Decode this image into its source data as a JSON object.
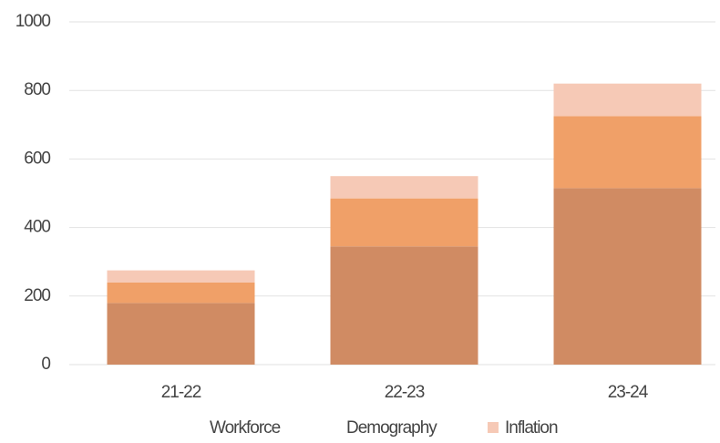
{
  "chart_data": {
    "type": "stacked-bar",
    "categories": [
      "21-22",
      "22-23",
      "23-24"
    ],
    "series": [
      {
        "name": "Workforce",
        "color": "#d08b63",
        "values": [
          180,
          345,
          515
        ]
      },
      {
        "name": "Demography",
        "color": "#f0a068",
        "values": [
          60,
          140,
          210
        ]
      },
      {
        "name": "Inflation",
        "color": "#f6c9b6",
        "values": [
          35,
          65,
          95
        ]
      }
    ],
    "ylim": [
      0,
      1000
    ],
    "yticks": [
      0,
      200,
      400,
      600,
      800,
      1000
    ],
    "grid": true
  }
}
